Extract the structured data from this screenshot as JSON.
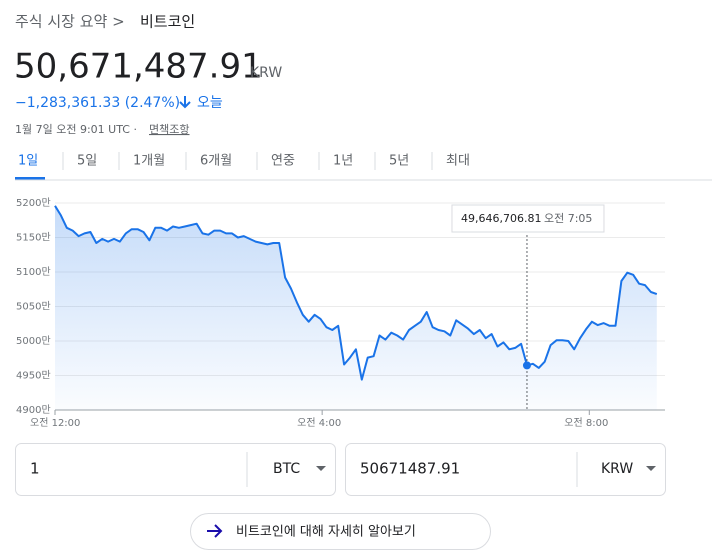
{
  "header": {
    "breadcrumb": "주식 시장 요약 >",
    "current": "비트코인",
    "price": "50,671,487.91",
    "currency": "KRW",
    "change": "−1,283,361.33 (2.47%)",
    "period": "오늘",
    "timestamp": "1월 7일 오전 9:01 UTC ·",
    "disclaimer": "면책조항"
  },
  "tabs": [
    "1일",
    "5일",
    "1개월",
    "6개월",
    "연중",
    "1년",
    "5년",
    "최대"
  ],
  "chart_data": {
    "type": "line",
    "color": "#1a73e8",
    "grid": true,
    "x": [
      0,
      5.3,
      10.6,
      15.9,
      21.2,
      26.5,
      31.8,
      37.1,
      42.4,
      47.7,
      53,
      58.3,
      63.6,
      68.9,
      74.2,
      79.5,
      84.8,
      90.1,
      95.4,
      100.7,
      106,
      111.3,
      116.6,
      121.9,
      127.2,
      132.5,
      137.8,
      143.1,
      148.4,
      153.7,
      159,
      164.3,
      169.6,
      174.9,
      180.2,
      185.5,
      190.8,
      196.1,
      201.4,
      206.7,
      212,
      217.3,
      222.6,
      227.9,
      233.2,
      238.5,
      243.8,
      249.1,
      254.4,
      259.7,
      265,
      270.3,
      275.6,
      280.9,
      286.2,
      291.5,
      296.8,
      302.1,
      307.4,
      312.7,
      318,
      323.3,
      328.6,
      333.9,
      339.2,
      344.5,
      349.8,
      355.1,
      360.4,
      365.7,
      371,
      376.3,
      381.6,
      386.9,
      392.2,
      397.5,
      402.8,
      408.1,
      413.4,
      418.7,
      424,
      429.3,
      434.6,
      439.9,
      445.2,
      450.5,
      455.8,
      461.1,
      466.4,
      471.7,
      477,
      482.3,
      487.6,
      492.9,
      498.2,
      503.5,
      508.8,
      514.1,
      519.4,
      524.7,
      530,
      535.3,
      540.6
    ],
    "values": [
      51960000,
      51820000,
      51640000,
      51600000,
      51520000,
      51560000,
      51580000,
      51420000,
      51480000,
      51440000,
      51480000,
      51440000,
      51560000,
      51620000,
      51620000,
      51580000,
      51460000,
      51640000,
      51640000,
      51600000,
      51660000,
      51640000,
      51660000,
      51680000,
      51700000,
      51560000,
      51540000,
      51600000,
      51600000,
      51560000,
      51560000,
      51500000,
      51520000,
      51480000,
      51440000,
      51420000,
      51400000,
      51420000,
      51420000,
      50920000,
      50760000,
      50560000,
      50380000,
      50280000,
      50380000,
      50320000,
      50200000,
      50160000,
      50220000,
      49660000,
      49760000,
      49880000,
      49440000,
      49760000,
      49780000,
      50080000,
      50020000,
      50120000,
      50080000,
      50020000,
      50160000,
      50220000,
      50280000,
      50420000,
      50200000,
      50160000,
      50140000,
      50080000,
      50300000,
      50240000,
      50180000,
      50100000,
      50160000,
      50040000,
      50100000,
      49920000,
      49980000,
      49880000,
      49900000,
      49960000,
      49646706.81,
      49670000,
      49610000,
      49700000,
      49940000,
      50010000,
      50010000,
      50000000,
      49880000,
      50040000,
      50170000,
      50280000,
      50230000,
      50260000,
      50220000,
      50220000,
      50870000,
      50990000,
      50960000,
      50830000,
      50810000,
      50710000,
      50680000
    ],
    "xlim": [
      0,
      548
    ],
    "xticks": [
      {
        "value": 0,
        "label": "오전 12:00"
      },
      {
        "value": 240,
        "label": "오전 4:00"
      },
      {
        "value": 480,
        "label": "오전 8:00"
      }
    ],
    "ylim": [
      49000000,
      52000000
    ],
    "yticks": [
      {
        "value": 49000000,
        "label": "4900만"
      },
      {
        "value": 49500000,
        "label": "4950만"
      },
      {
        "value": 50000000,
        "label": "5000만"
      },
      {
        "value": 50500000,
        "label": "5050만"
      },
      {
        "value": 51000000,
        "label": "5100만"
      },
      {
        "value": 51500000,
        "label": "5150만"
      },
      {
        "value": 52000000,
        "label": "5200만"
      }
    ],
    "tooltip": {
      "value_label": "49,646,706.81",
      "time": "오전 7:05"
    }
  },
  "converter": {
    "amount": "1",
    "from": "BTC",
    "result": "50671487.91",
    "to": "KRW"
  },
  "more_button": "비트코인에 대해 자세히 알아보기"
}
